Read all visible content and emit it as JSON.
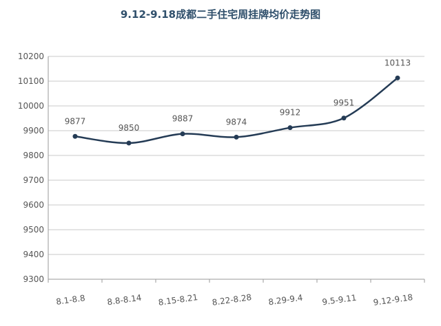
{
  "chart_data": {
    "type": "line",
    "title": "9.12-9.18成都二手住宅周挂牌均价走势图",
    "xlabel": "",
    "ylabel": "",
    "categories": [
      "8.1-8.8",
      "8.8-8.14",
      "8.15-8.21",
      "8.22-8.28",
      "8.29-9.4",
      "9.5-9.11",
      "9.12-9.18"
    ],
    "series": [
      {
        "values": [
          9877,
          9850,
          9887,
          9874,
          9912,
          9951,
          10113
        ]
      }
    ],
    "ylim": [
      9300,
      10200
    ],
    "yticks": [
      "9300",
      "9400",
      "9500",
      "9600",
      "9700",
      "9800",
      "9900",
      "10000",
      "10100",
      "10200"
    ],
    "data_labels": [
      "9877",
      "9850",
      "9887",
      "9874",
      "9912",
      "9951",
      "10113"
    ],
    "grid": true,
    "line_color": "#243b55"
  }
}
